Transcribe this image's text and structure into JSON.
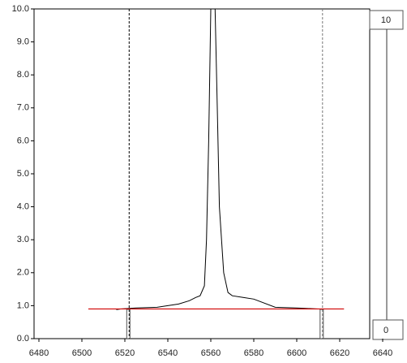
{
  "chart_data": {
    "type": "line",
    "x": [
      6516,
      6518,
      6525,
      6535,
      6540,
      6545,
      6550,
      6553,
      6555,
      6557,
      6558,
      6559,
      6560,
      6561,
      6562,
      6563,
      6564,
      6566,
      6568,
      6570,
      6575,
      6580,
      6590,
      6600,
      6610,
      6612
    ],
    "series": [
      {
        "color": "#000000",
        "values": [
          0.88,
          0.9,
          0.93,
          0.95,
          1.0,
          1.05,
          1.15,
          1.25,
          1.3,
          1.6,
          3.0,
          6.0,
          10.0,
          10.0,
          10.0,
          7.0,
          4.0,
          2.0,
          1.4,
          1.3,
          1.25,
          1.2,
          0.95,
          0.93,
          0.9,
          0.9
        ]
      }
    ],
    "xlim": [
      6480,
      6640
    ],
    "xticks": [
      6480,
      6500,
      6520,
      6540,
      6560,
      6580,
      6600,
      6620,
      6640
    ],
    "ylim": [
      0,
      10
    ],
    "yticks": [
      {
        "value": 0,
        "label": "0.0"
      },
      {
        "value": 1,
        "label": "1.0"
      },
      {
        "value": 2,
        "label": "2.0"
      },
      {
        "value": 3,
        "label": "3.0"
      },
      {
        "value": 4,
        "label": "4.0"
      },
      {
        "value": 5,
        "label": "5.0"
      },
      {
        "value": 6,
        "label": "6.0"
      },
      {
        "value": 7,
        "label": "7.0"
      },
      {
        "value": 8,
        "label": "8.0"
      },
      {
        "value": 9,
        "label": "9.0"
      },
      {
        "value": 10,
        "label": "10.0"
      }
    ],
    "continuum": {
      "color": "#d00000",
      "value": 0.9,
      "x_range": [
        6503,
        6622
      ]
    },
    "window": [
      6522,
      6612
    ],
    "slider": {
      "max_label": "10",
      "min_label": "0"
    }
  }
}
